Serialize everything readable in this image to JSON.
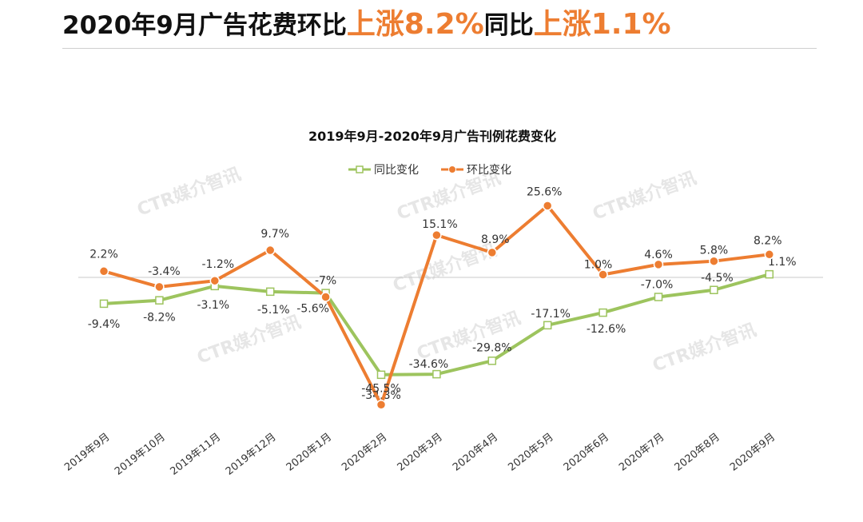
{
  "headline": {
    "part1": "2020年9月广告花费环比",
    "part2": "上涨8.2%",
    "part3": "同比",
    "part4": "上涨1.1%"
  },
  "chart_data": {
    "type": "line",
    "title": "2019年9月-2020年9月广告刊例花费变化",
    "legend_position": "top-center",
    "categories": [
      "2019年9月",
      "2019年10月",
      "2019年11月",
      "2019年12月",
      "2020年1月",
      "2020年2月",
      "2020年3月",
      "2020年4月",
      "2020年5月",
      "2020年6月",
      "2020年7月",
      "2020年8月",
      "2020年9月"
    ],
    "series": [
      {
        "name": "同比变化",
        "color": "#9dc45e",
        "marker": "square-hollow",
        "values": [
          -9.4,
          -8.2,
          -3.1,
          -5.1,
          -5.6,
          -34.8,
          -34.6,
          -29.8,
          -17.1,
          -12.6,
          -7.0,
          -4.5,
          1.1
        ],
        "labels": [
          "-9.4%",
          "-8.2%",
          "-3.1%",
          "-5.1%",
          "-5.6%",
          "-34.8%",
          "-34.6%",
          "-29.8%",
          "-17.1%",
          "-12.6%",
          "-7.0%",
          "-4.5%",
          "1.1%"
        ]
      },
      {
        "name": "环比变化",
        "color": "#ed7d31",
        "marker": "circle",
        "values": [
          2.2,
          -3.4,
          -1.2,
          9.7,
          -7,
          -45.5,
          15.1,
          8.9,
          25.6,
          1.0,
          4.6,
          5.8,
          8.2
        ],
        "labels": [
          "2.2%",
          "-3.4%",
          "-1.2%",
          "9.7%",
          "-7%",
          "-45.5%",
          "15.1%",
          "8.9%",
          "25.6%",
          "1.0%",
          "4.6%",
          "5.8%",
          "8.2%"
        ]
      }
    ],
    "watermark": "CTR媒介智讯"
  }
}
